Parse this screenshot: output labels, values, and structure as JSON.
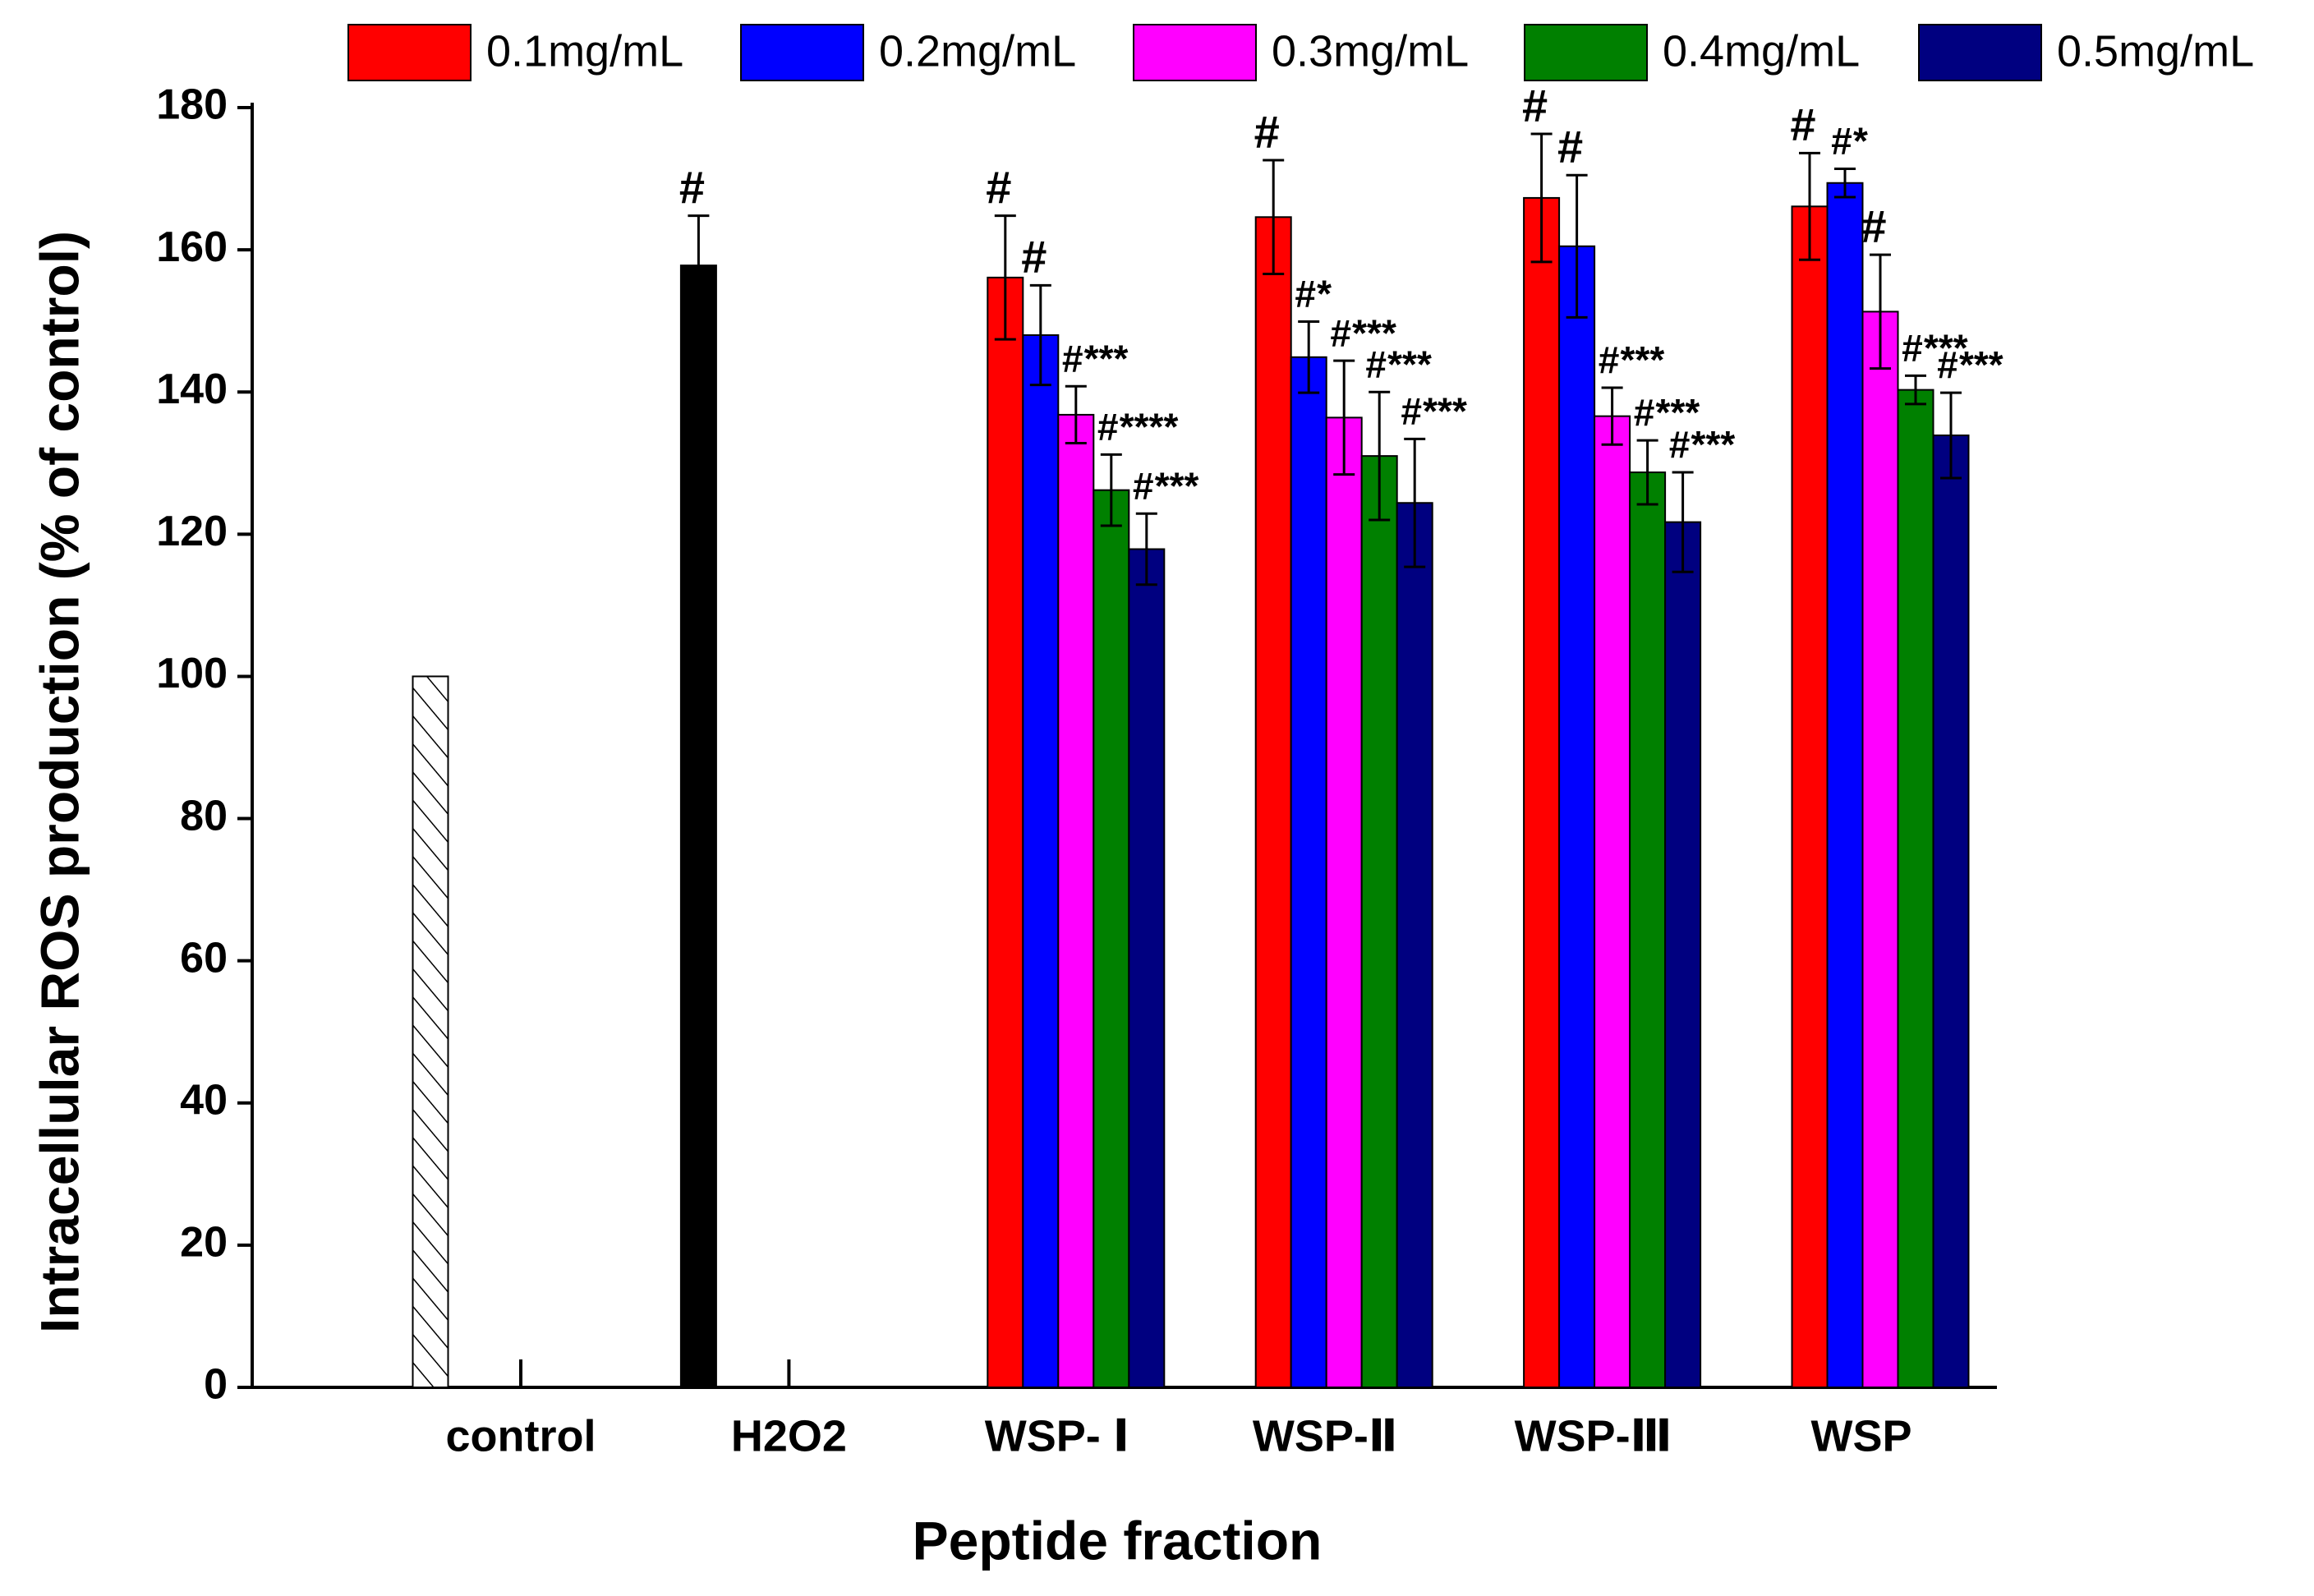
{
  "chart_data": {
    "type": "grouped-bar",
    "x_label": "Peptide fraction",
    "y_label": "Intracellular ROS production (% of control)",
    "categories": [
      "control",
      "H2O2",
      "WSP- Ⅰ",
      "WSP-Ⅱ",
      "WSP-Ⅲ",
      "WSP"
    ],
    "ylim": [
      0,
      180
    ],
    "yticks": [
      0,
      20,
      40,
      60,
      80,
      100,
      120,
      140,
      160,
      180
    ],
    "legend": "top",
    "base_bars": {
      "values": [
        100,
        157.8
      ],
      "errors": [
        0,
        7
      ],
      "annotations": [
        null,
        "#"
      ],
      "fills": [
        "hatched",
        "#000000"
      ]
    },
    "series": [
      {
        "name": "0.1mg/mL",
        "color": "#ff0000",
        "values": [
          null,
          null,
          156.1,
          164.6,
          167.3,
          166.1
        ],
        "errors": [
          null,
          null,
          8.7,
          8,
          9,
          7.5
        ],
        "annotations": [
          null,
          null,
          "#",
          "#",
          "#",
          "#"
        ]
      },
      {
        "name": "0.2mg/mL",
        "color": "#0000ff",
        "values": [
          null,
          null,
          148,
          144.9,
          160.5,
          169.4
        ],
        "errors": [
          null,
          null,
          7,
          5,
          10,
          2
        ],
        "annotations": [
          null,
          null,
          "#",
          "#*",
          "#",
          "#*"
        ]
      },
      {
        "name": "0.3mg/mL",
        "color": "#ff00ff",
        "values": [
          null,
          null,
          136.8,
          136.4,
          136.6,
          151.3
        ],
        "errors": [
          null,
          null,
          4,
          8,
          4,
          8
        ],
        "annotations": [
          null,
          null,
          "#***",
          "#***",
          "#***",
          "#"
        ]
      },
      {
        "name": "0.4mg/mL",
        "color": "#008000",
        "values": [
          null,
          null,
          126.2,
          131,
          128.7,
          140.3
        ],
        "errors": [
          null,
          null,
          5,
          9,
          4.5,
          2
        ],
        "annotations": [
          null,
          null,
          "#****",
          "#***",
          "#***",
          "#***"
        ]
      },
      {
        "name": "0.5mg/mL",
        "color": "#000080",
        "values": [
          null,
          null,
          117.9,
          124.4,
          121.7,
          133.9
        ],
        "errors": [
          null,
          null,
          5,
          9,
          7,
          6
        ],
        "annotations": [
          null,
          null,
          "#***",
          "#***",
          "#***",
          "#***"
        ]
      }
    ]
  }
}
